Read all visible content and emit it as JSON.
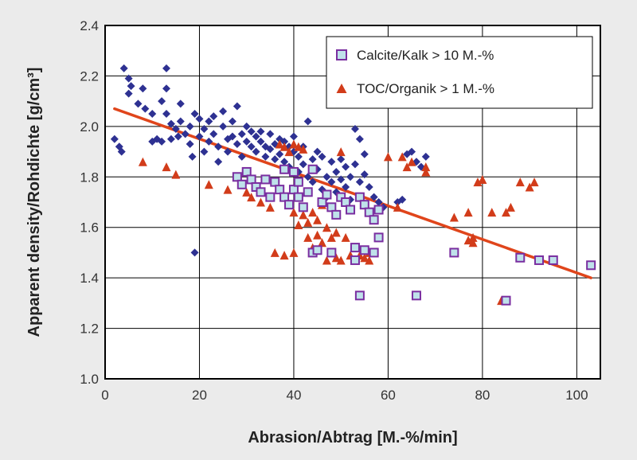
{
  "colors": {
    "background": "#ebebeb",
    "plot_background": "#ffffff",
    "grid": "#000000",
    "diamond": "#2e3192",
    "square_fill": "#bfe2ea",
    "square_edge": "#7a2ea0",
    "triangle": "#d23c1a",
    "trend": "#e0451b"
  },
  "chart_data": {
    "type": "scatter",
    "title": "",
    "xlabel": "Abrasion/Abtrag [M.-%/min]",
    "ylabel": "Apparent density/Rohdichte [g/cm³]",
    "xlim": [
      0,
      105
    ],
    "ylim": [
      1.0,
      2.4
    ],
    "xticks": [
      0,
      20,
      40,
      60,
      80,
      100
    ],
    "xtick_labels": [
      "0",
      "20",
      "40",
      "60",
      "80",
      "100"
    ],
    "yticks": [
      1.0,
      1.2,
      1.4,
      1.6,
      1.8,
      2.0,
      2.2,
      2.4
    ],
    "ytick_labels": [
      "1.0",
      "1.2",
      "1.4",
      "1.6",
      "1.8",
      "2.0",
      "2.2",
      "2.4"
    ],
    "grid": true,
    "legend_position": "top-right",
    "series": [
      {
        "marker": "diamond",
        "color": "#2e3192",
        "points": [
          [
            2,
            1.95
          ],
          [
            3,
            1.92
          ],
          [
            3.5,
            1.9
          ],
          [
            4,
            2.23
          ],
          [
            5,
            2.19
          ],
          [
            5.5,
            2.16
          ],
          [
            5,
            2.13
          ],
          [
            7,
            2.09
          ],
          [
            8,
            2.15
          ],
          [
            8.5,
            2.07
          ],
          [
            10,
            2.05
          ],
          [
            10,
            1.94
          ],
          [
            11,
            1.95
          ],
          [
            12,
            1.94
          ],
          [
            12,
            2.1
          ],
          [
            13,
            2.15
          ],
          [
            13,
            2.23
          ],
          [
            13,
            2.05
          ],
          [
            14,
            1.95
          ],
          [
            14,
            2.01
          ],
          [
            15,
            1.99
          ],
          [
            15.5,
            1.96
          ],
          [
            16,
            2.09
          ],
          [
            16,
            2.02
          ],
          [
            17,
            1.97
          ],
          [
            18,
            1.93
          ],
          [
            18,
            2.0
          ],
          [
            18.5,
            1.88
          ],
          [
            19,
            2.05
          ],
          [
            19,
            1.5
          ],
          [
            20,
            2.03
          ],
          [
            20,
            1.96
          ],
          [
            21,
            1.99
          ],
          [
            21,
            1.9
          ],
          [
            22,
            2.02
          ],
          [
            22,
            1.94
          ],
          [
            23,
            2.04
          ],
          [
            23,
            1.97
          ],
          [
            24,
            1.92
          ],
          [
            24,
            1.86
          ],
          [
            25,
            2.06
          ],
          [
            25,
            2.0
          ],
          [
            26,
            1.95
          ],
          [
            26,
            1.9
          ],
          [
            27,
            2.02
          ],
          [
            27,
            1.96
          ],
          [
            28,
            1.93
          ],
          [
            28,
            2.08
          ],
          [
            29,
            1.97
          ],
          [
            29,
            1.88
          ],
          [
            30,
            2.0
          ],
          [
            30,
            1.94
          ],
          [
            31,
            1.92
          ],
          [
            31,
            1.98
          ],
          [
            32,
            1.96
          ],
          [
            32,
            1.9
          ],
          [
            33,
            1.94
          ],
          [
            33,
            1.98
          ],
          [
            34,
            1.92
          ],
          [
            34,
            1.88
          ],
          [
            35,
            1.97
          ],
          [
            35,
            1.91
          ],
          [
            36,
            1.93
          ],
          [
            36,
            1.87
          ],
          [
            37,
            1.95
          ],
          [
            37,
            1.89
          ],
          [
            38,
            1.94
          ],
          [
            38,
            1.86
          ],
          [
            39,
            1.92
          ],
          [
            39,
            1.84
          ],
          [
            40,
            1.9
          ],
          [
            40,
            1.96
          ],
          [
            41,
            1.88
          ],
          [
            41,
            1.82
          ],
          [
            42,
            1.92
          ],
          [
            42,
            1.85
          ],
          [
            43,
            2.02
          ],
          [
            43,
            1.8
          ],
          [
            44,
            1.87
          ],
          [
            44,
            1.78
          ],
          [
            45,
            1.9
          ],
          [
            45,
            1.83
          ],
          [
            46,
            1.75
          ],
          [
            46,
            1.88
          ],
          [
            47,
            1.8
          ],
          [
            47,
            1.72
          ],
          [
            48,
            1.86
          ],
          [
            48,
            1.78
          ],
          [
            49,
            1.82
          ],
          [
            49,
            1.74
          ],
          [
            50,
            1.87
          ],
          [
            50,
            1.79
          ],
          [
            51,
            1.84
          ],
          [
            51,
            1.76
          ],
          [
            52,
            1.8
          ],
          [
            52,
            1.71
          ],
          [
            53,
            1.99
          ],
          [
            53,
            1.85
          ],
          [
            54,
            1.95
          ],
          [
            54,
            1.78
          ],
          [
            55,
            1.89
          ],
          [
            55,
            1.81
          ],
          [
            56,
            1.76
          ],
          [
            57,
            1.72
          ],
          [
            58,
            1.7
          ],
          [
            59,
            1.68
          ],
          [
            62,
            1.7
          ],
          [
            63,
            1.71
          ],
          [
            64,
            1.89
          ],
          [
            65,
            1.9
          ],
          [
            66,
            1.86
          ],
          [
            67,
            1.84
          ],
          [
            68,
            1.88
          ]
        ]
      },
      {
        "name": "Calcite/Kalk > 10 M.-%",
        "marker": "square",
        "fill": "#bfe2ea",
        "edge": "#7a2ea0",
        "points": [
          [
            28,
            1.8
          ],
          [
            29,
            1.77
          ],
          [
            30,
            1.82
          ],
          [
            31,
            1.79
          ],
          [
            32,
            1.76
          ],
          [
            33,
            1.74
          ],
          [
            34,
            1.79
          ],
          [
            35,
            1.72
          ],
          [
            36,
            1.78
          ],
          [
            37,
            1.75
          ],
          [
            38,
            1.83
          ],
          [
            38,
            1.72
          ],
          [
            39,
            1.69
          ],
          [
            40,
            1.82
          ],
          [
            40,
            1.75
          ],
          [
            41,
            1.78
          ],
          [
            41,
            1.72
          ],
          [
            42,
            1.68
          ],
          [
            43,
            1.74
          ],
          [
            44,
            1.83
          ],
          [
            44,
            1.5
          ],
          [
            45,
            1.51
          ],
          [
            46,
            1.7
          ],
          [
            47,
            1.73
          ],
          [
            48,
            1.68
          ],
          [
            48,
            1.5
          ],
          [
            49,
            1.65
          ],
          [
            50,
            1.72
          ],
          [
            51,
            1.7
          ],
          [
            52,
            1.67
          ],
          [
            53,
            1.52
          ],
          [
            53,
            1.47
          ],
          [
            54,
            1.72
          ],
          [
            55,
            1.69
          ],
          [
            55,
            1.51
          ],
          [
            56,
            1.66
          ],
          [
            57,
            1.63
          ],
          [
            57,
            1.5
          ],
          [
            58,
            1.67
          ],
          [
            58,
            1.56
          ],
          [
            54,
            1.33
          ],
          [
            66,
            1.33
          ],
          [
            74,
            1.5
          ],
          [
            85,
            1.31
          ],
          [
            88,
            1.48
          ],
          [
            92,
            1.47
          ],
          [
            95,
            1.47
          ],
          [
            103,
            1.45
          ]
        ]
      },
      {
        "name": "TOC/Organik > 1 M.-%",
        "marker": "triangle",
        "color": "#d23c1a",
        "points": [
          [
            8,
            1.86
          ],
          [
            13,
            1.84
          ],
          [
            15,
            1.81
          ],
          [
            22,
            1.77
          ],
          [
            26,
            1.75
          ],
          [
            30,
            1.74
          ],
          [
            31,
            1.72
          ],
          [
            33,
            1.7
          ],
          [
            35,
            1.68
          ],
          [
            36,
            1.5
          ],
          [
            37,
            1.93
          ],
          [
            38,
            1.92
          ],
          [
            38,
            1.49
          ],
          [
            39,
            1.9
          ],
          [
            40,
            1.93
          ],
          [
            40,
            1.66
          ],
          [
            40,
            1.5
          ],
          [
            41,
            1.92
          ],
          [
            41,
            1.61
          ],
          [
            42,
            1.65
          ],
          [
            42,
            1.91
          ],
          [
            43,
            1.62
          ],
          [
            43,
            1.56
          ],
          [
            44,
            1.66
          ],
          [
            44,
            1.52
          ],
          [
            45,
            1.63
          ],
          [
            45,
            1.57
          ],
          [
            46,
            1.69
          ],
          [
            46,
            1.54
          ],
          [
            47,
            1.6
          ],
          [
            47,
            1.47
          ],
          [
            48,
            1.56
          ],
          [
            49,
            1.58
          ],
          [
            49,
            1.48
          ],
          [
            50,
            1.47
          ],
          [
            50,
            1.9
          ],
          [
            51,
            1.56
          ],
          [
            52,
            1.49
          ],
          [
            53,
            1.47
          ],
          [
            54,
            1.49
          ],
          [
            55,
            1.48
          ],
          [
            56,
            1.5
          ],
          [
            56,
            1.47
          ],
          [
            60,
            1.88
          ],
          [
            62,
            1.68
          ],
          [
            63,
            1.88
          ],
          [
            64,
            1.84
          ],
          [
            65,
            1.86
          ],
          [
            68,
            1.84
          ],
          [
            68,
            1.82
          ],
          [
            74,
            1.64
          ],
          [
            77,
            1.66
          ],
          [
            77,
            1.55
          ],
          [
            78,
            1.56
          ],
          [
            78,
            1.54
          ],
          [
            79,
            1.78
          ],
          [
            80,
            1.79
          ],
          [
            82,
            1.66
          ],
          [
            85,
            1.66
          ],
          [
            86,
            1.68
          ],
          [
            88,
            1.78
          ],
          [
            90,
            1.76
          ],
          [
            91,
            1.78
          ],
          [
            84,
            1.31
          ],
          [
            66,
            1.33
          ],
          [
            54,
            1.33
          ]
        ]
      }
    ],
    "trendline": {
      "x": [
        2,
        103
      ],
      "y": [
        2.07,
        1.4
      ],
      "color": "#e0451b"
    }
  }
}
